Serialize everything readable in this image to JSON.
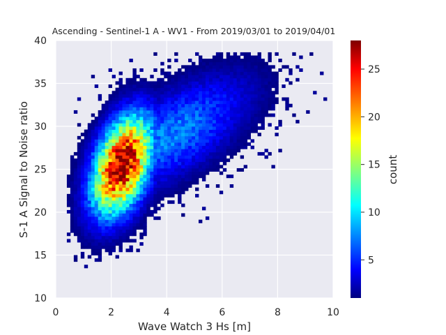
{
  "chart_data": {
    "type": "heatmap",
    "title": "Ascending - Sentinel-1 A - WV1 - From 2019/03/01 to 2019/04/01",
    "xlabel": "Wave Watch 3 Hs [m]",
    "ylabel": "S-1 A Signal to Noise ratio",
    "xlim": [
      0,
      10
    ],
    "ylim": [
      10,
      40
    ],
    "xticks": [
      "0",
      "2",
      "4",
      "6",
      "8",
      "10"
    ],
    "yticks": [
      "10",
      "15",
      "20",
      "25",
      "30",
      "35",
      "40"
    ],
    "colorbar": {
      "label": "count",
      "range": [
        1,
        28
      ],
      "ticks": [
        "5",
        "10",
        "15",
        "20",
        "25"
      ],
      "colormap": "jet"
    },
    "bin_size": {
      "x": 0.125,
      "y": 0.375
    },
    "density_core": {
      "hs_center": 2.4,
      "snr_center": 25.5,
      "peak_count": 28
    },
    "grid": true,
    "background": "#eaeaf2"
  }
}
